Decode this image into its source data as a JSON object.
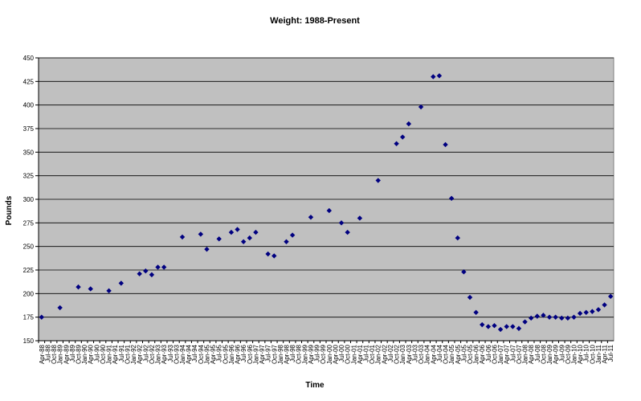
{
  "chart_data": {
    "type": "scatter",
    "title": "Weight: 1988-Present",
    "x_label": "Time",
    "y_label": "Pounds",
    "categories": [
      "Apr-88",
      "Jul-88",
      "Oct-88",
      "Jan-89",
      "Apr-89",
      "Jul-89",
      "Oct-89",
      "Jan-90",
      "Apr-90",
      "Jul-90",
      "Oct-90",
      "Jan-91",
      "Apr-91",
      "Jul-91",
      "Oct-91",
      "Jan-92",
      "Apr-92",
      "Jul-92",
      "Oct-92",
      "Jan-93",
      "Apr-93",
      "Jul-93",
      "Oct-93",
      "Jan-94",
      "Apr-94",
      "Jul-94",
      "Oct-94",
      "Jan-95",
      "Apr-95",
      "Jul-95",
      "Oct-95",
      "Jan-96",
      "Apr-96",
      "Jul-96",
      "Oct-96",
      "Jan-97",
      "Apr-97",
      "Jul-97",
      "Oct-97",
      "Jan-98",
      "Apr-98",
      "Jul-98",
      "Oct-98",
      "Jan-99",
      "Apr-99",
      "Jul-99",
      "Oct-99",
      "Jan-00",
      "Apr-00",
      "Jul-00",
      "Oct-00",
      "Jan-01",
      "Apr-01",
      "Jul-01",
      "Oct-01",
      "Jan-02",
      "Apr-02",
      "Jul-02",
      "Oct-02",
      "Jan-03",
      "Apr-03",
      "Jul-03",
      "Oct-03",
      "Jan-04",
      "Apr-04",
      "Jul-04",
      "Oct-04",
      "Jan-05",
      "Apr-05",
      "Jul-05",
      "Oct-05",
      "Jan-06",
      "Apr-06",
      "Jul-06",
      "Oct-06",
      "Jan-07",
      "Apr-07",
      "Jul-07",
      "Oct-07",
      "Jan-08",
      "Apr-08",
      "Jul-08",
      "Oct-08",
      "Jan-09",
      "Apr-09",
      "Jul-09",
      "Oct-09",
      "Jan-10",
      "Apr-10",
      "Jul-10",
      "Oct-10",
      "Jan-11",
      "Apr-11",
      "Jul-11"
    ],
    "values": [
      175,
      null,
      null,
      185,
      null,
      null,
      207,
      null,
      205,
      null,
      null,
      203,
      null,
      211,
      null,
      null,
      221,
      224,
      220,
      228,
      228,
      null,
      null,
      260,
      null,
      null,
      263,
      247,
      null,
      258,
      null,
      265,
      268,
      255,
      259,
      265,
      null,
      242,
      240,
      null,
      255,
      262,
      null,
      null,
      281,
      null,
      null,
      288,
      null,
      275,
      265,
      null,
      280,
      null,
      null,
      320,
      null,
      null,
      359,
      366,
      380,
      null,
      398,
      null,
      430,
      431,
      358,
      301,
      259,
      223,
      196,
      180,
      167,
      165,
      166,
      162,
      165,
      165,
      163,
      170,
      174,
      176,
      177,
      175,
      175,
      174,
      174,
      175,
      179,
      180,
      181,
      183,
      188,
      197
    ],
    "color": "#000080",
    "plot_background": "#c0c0c0",
    "ylim": [
      150,
      450
    ],
    "yticks": [
      150,
      175,
      200,
      225,
      250,
      275,
      300,
      325,
      350,
      375,
      400,
      425,
      450
    ],
    "grid": true
  }
}
